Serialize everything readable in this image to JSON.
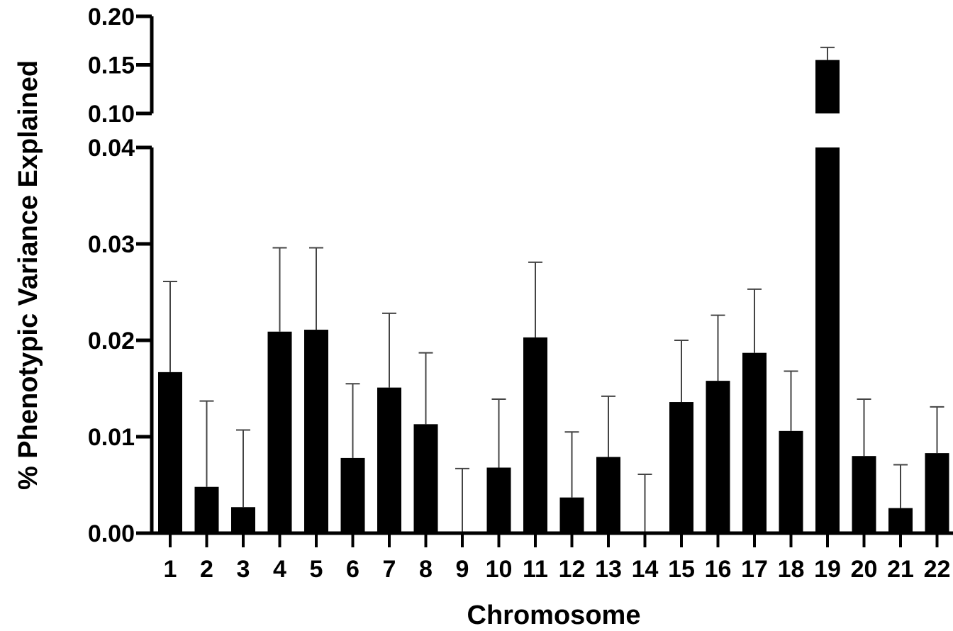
{
  "chart_data": {
    "type": "bar",
    "title": "",
    "xlabel": "Chromosome",
    "ylabel": "% Phenotypic Variance Explained",
    "categories": [
      "1",
      "2",
      "3",
      "4",
      "5",
      "6",
      "7",
      "8",
      "9",
      "10",
      "11",
      "12",
      "13",
      "14",
      "15",
      "16",
      "17",
      "18",
      "19",
      "20",
      "21",
      "22"
    ],
    "values": [
      0.0167,
      0.0048,
      0.0027,
      0.0209,
      0.0211,
      0.0078,
      0.0151,
      0.0113,
      0.0,
      0.0068,
      0.0203,
      0.0037,
      0.0079,
      0.0,
      0.0136,
      0.0158,
      0.0187,
      0.0106,
      0.155,
      0.008,
      0.0026,
      0.0083
    ],
    "error_upper": [
      0.0261,
      0.0137,
      0.0107,
      0.0296,
      0.0296,
      0.0155,
      0.0228,
      0.0187,
      0.0067,
      0.0139,
      0.0281,
      0.0105,
      0.0142,
      0.0061,
      0.02,
      0.0226,
      0.0253,
      0.0168,
      0.168,
      0.0139,
      0.0071,
      0.0131
    ],
    "y_axis_broken": true,
    "lower_segment": {
      "ylim": [
        0,
        0.04
      ],
      "ticks": [
        "0.00",
        "0.01",
        "0.02",
        "0.03",
        "0.04"
      ]
    },
    "upper_segment": {
      "ylim": [
        0.1,
        0.2
      ],
      "ticks": [
        "0.10",
        "0.15",
        "0.20"
      ]
    },
    "bar_color": "#000000",
    "error_bar_color": "#444444",
    "grid": false,
    "legend": "none"
  }
}
